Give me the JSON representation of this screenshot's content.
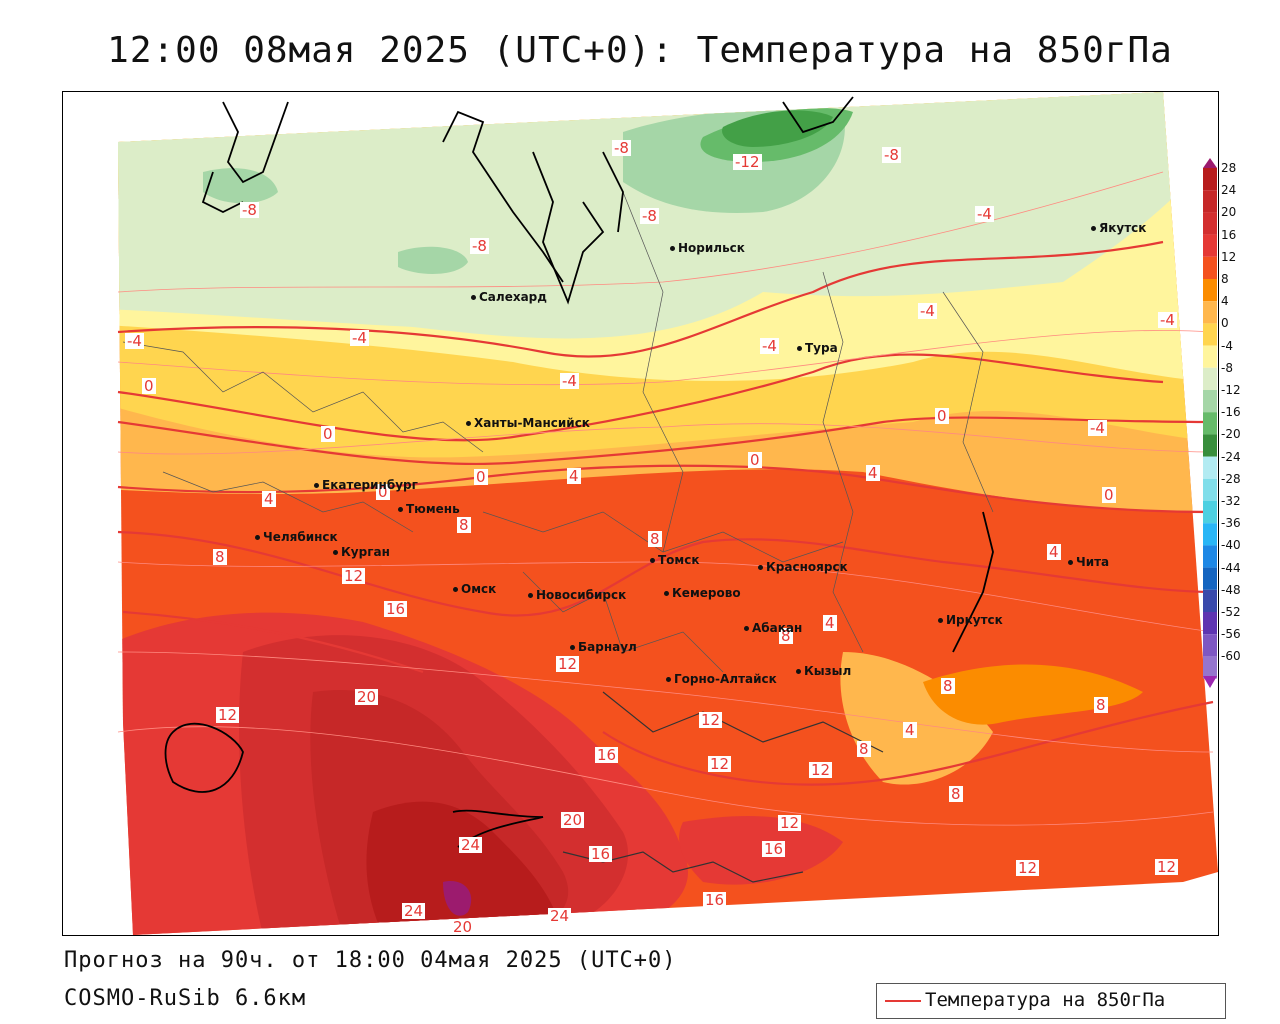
{
  "title": "12:00 08мая 2025 (UTC+0): Температура на 850гПа",
  "footer": {
    "forecast": "Прогноз на 90ч. от 18:00 04мая 2025 (UTC+0)",
    "model": "COSMO-RuSib 6.6км"
  },
  "legend": {
    "label": "Температура на 850гПа",
    "line_color": "#e53935"
  },
  "colorbar": {
    "levels": [
      "28",
      "24",
      "20",
      "16",
      "12",
      "8",
      "4",
      "0",
      "-4",
      "-8",
      "-12",
      "-16",
      "-20",
      "-24",
      "-28",
      "-32",
      "-36",
      "-40",
      "-44",
      "-48",
      "-52",
      "-56",
      "-60"
    ],
    "colors": [
      "#b71c1c",
      "#c62828",
      "#d32f2f",
      "#e53935",
      "#f4511e",
      "#fb8c00",
      "#ffb74d",
      "#ffd54f",
      "#fff59d",
      "#dcedc8",
      "#a5d6a7",
      "#66bb6a",
      "#388e3c",
      "#b2ebf2",
      "#80deea",
      "#4dd0e1",
      "#29b6f6",
      "#1e88e5",
      "#1565c0",
      "#3949ab",
      "#5e35b1",
      "#7e57c2",
      "#9575cd"
    ]
  },
  "cities": [
    {
      "name": "Норильск"
    },
    {
      "name": "Якутск"
    },
    {
      "name": "Салехард"
    },
    {
      "name": "Тура"
    },
    {
      "name": "Ханты-Мансийск"
    },
    {
      "name": "Екатеринбург"
    },
    {
      "name": "Тюмень"
    },
    {
      "name": "Челябинск"
    },
    {
      "name": "Курган"
    },
    {
      "name": "Омск"
    },
    {
      "name": "Новосибирск"
    },
    {
      "name": "Томск"
    },
    {
      "name": "Красноярск"
    },
    {
      "name": "Кемерово"
    },
    {
      "name": "Барнаул"
    },
    {
      "name": "Абакан"
    },
    {
      "name": "Иркутск"
    },
    {
      "name": "Чита"
    },
    {
      "name": "Горно-Алтайск"
    },
    {
      "name": "Кызыл"
    }
  ],
  "contour_labels": [
    "-12",
    "-8",
    "-8",
    "-8",
    "-8",
    "-8",
    "-4",
    "-4",
    "-4",
    "-4",
    "-4",
    "-4",
    "-4",
    "-4",
    "0",
    "0",
    "0",
    "0",
    "0",
    "0",
    "0",
    "4",
    "4",
    "4",
    "4",
    "4",
    "4",
    "8",
    "8",
    "8",
    "8",
    "8",
    "8",
    "8",
    "8",
    "12",
    "12",
    "12",
    "12",
    "12",
    "12",
    "12",
    "12",
    "12",
    "16",
    "16",
    "16",
    "16",
    "16",
    "20",
    "20",
    "20",
    "24",
    "24",
    "24"
  ]
}
